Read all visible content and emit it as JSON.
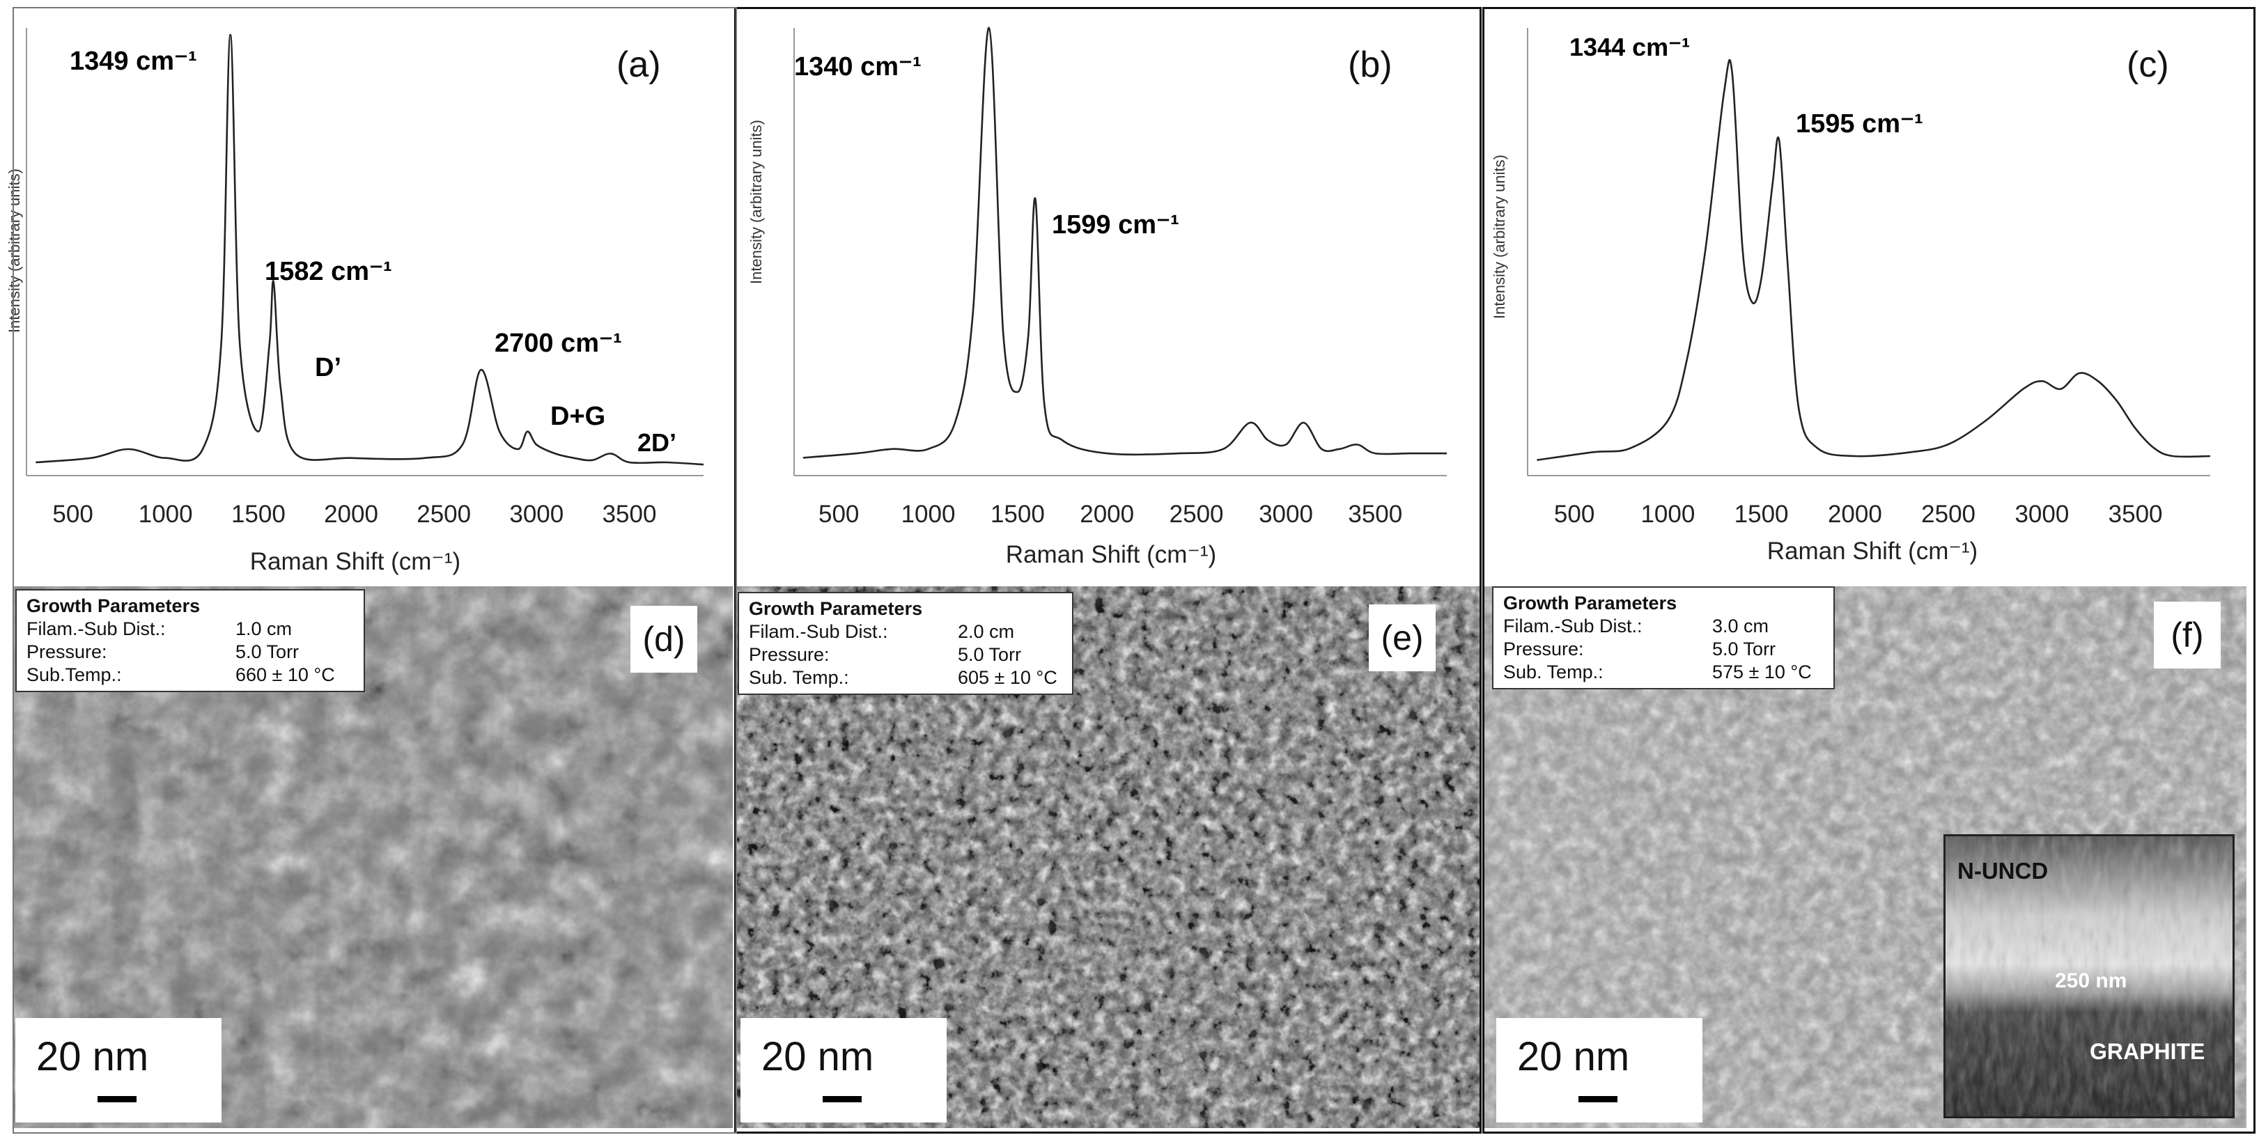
{
  "raman_panels": [
    {
      "letter": "(a)",
      "ylabel": "Intensity (arbitrary units)",
      "xlabel": "Raman Shift (cm⁻¹)",
      "ticks": [
        "500",
        "1000",
        "1500",
        "2000",
        "2500",
        "3000",
        "3500"
      ],
      "annotations": [
        {
          "text": "1349 cm⁻¹"
        },
        {
          "text": "1582 cm⁻¹"
        },
        {
          "text": "D’"
        },
        {
          "text": "2700 cm⁻¹"
        },
        {
          "text": "D+G"
        },
        {
          "text": "2D’"
        }
      ]
    },
    {
      "letter": "(b)",
      "ylabel": "Intensity (arbitrary units)",
      "xlabel": "Raman Shift (cm⁻¹)",
      "ticks": [
        "500",
        "1000",
        "1500",
        "2000",
        "2500",
        "3000",
        "3500"
      ],
      "annotations": [
        {
          "text": "1340 cm⁻¹"
        },
        {
          "text": "1599 cm⁻¹"
        }
      ]
    },
    {
      "letter": "(c)",
      "ylabel": "Intensity (arbitrary units)",
      "xlabel": "Raman Shift (cm⁻¹)",
      "ticks": [
        "500",
        "1000",
        "1500",
        "2000",
        "2500",
        "3000",
        "3500"
      ],
      "annotations": [
        {
          "text": "1344 cm⁻¹"
        },
        {
          "text": "1595 cm⁻¹"
        }
      ]
    }
  ],
  "chart_data": [
    {
      "type": "line",
      "panel": "(a)",
      "xlabel": "Raman Shift (cm⁻¹)",
      "ylabel": "Intensity (arbitrary units)",
      "xlim": [
        250,
        3900
      ],
      "ylim": [
        0,
        1
      ],
      "series": [
        {
          "x": [
            300,
            600,
            800,
            1000,
            1200,
            1300,
            1349,
            1400,
            1500,
            1560,
            1582,
            1620,
            1700,
            2000,
            2400,
            2600,
            2700,
            2800,
            2900,
            2950,
            3000,
            3100,
            3200,
            3300,
            3400,
            3500,
            3700,
            3900
          ],
          "y": [
            0.03,
            0.04,
            0.06,
            0.04,
            0.06,
            0.3,
            1.0,
            0.3,
            0.1,
            0.3,
            0.44,
            0.2,
            0.05,
            0.04,
            0.04,
            0.07,
            0.24,
            0.1,
            0.06,
            0.1,
            0.07,
            0.05,
            0.04,
            0.035,
            0.05,
            0.03,
            0.03,
            0.025
          ]
        }
      ]
    },
    {
      "type": "line",
      "panel": "(b)",
      "xlabel": "Raman Shift (cm⁻¹)",
      "ylabel": "Intensity (arbitrary units)",
      "xlim": [
        250,
        3900
      ],
      "ylim": [
        0,
        1
      ],
      "series": [
        {
          "x": [
            300,
            600,
            800,
            1000,
            1150,
            1250,
            1340,
            1420,
            1500,
            1560,
            1599,
            1650,
            1750,
            2000,
            2400,
            2650,
            2800,
            2900,
            3000,
            3100,
            3200,
            3300,
            3400,
            3500,
            3700,
            3900
          ],
          "y": [
            0.02,
            0.03,
            0.04,
            0.04,
            0.1,
            0.35,
            1.0,
            0.3,
            0.17,
            0.3,
            0.61,
            0.14,
            0.06,
            0.03,
            0.03,
            0.04,
            0.1,
            0.06,
            0.05,
            0.1,
            0.04,
            0.04,
            0.05,
            0.03,
            0.03,
            0.03
          ]
        }
      ]
    },
    {
      "type": "line",
      "panel": "(c)",
      "xlabel": "Raman Shift (cm⁻¹)",
      "ylabel": "Intensity (arbitrary units)",
      "xlim": [
        250,
        3900
      ],
      "ylim": [
        0,
        1
      ],
      "series": [
        {
          "x": [
            300,
            600,
            800,
            1000,
            1100,
            1200,
            1300,
            1344,
            1400,
            1450,
            1500,
            1560,
            1595,
            1640,
            1700,
            1800,
            2000,
            2300,
            2500,
            2700,
            2900,
            3000,
            3100,
            3200,
            3300,
            3400,
            3500,
            3600,
            3700,
            3900
          ],
          "y": [
            0.02,
            0.04,
            0.05,
            0.12,
            0.27,
            0.55,
            0.95,
            1.0,
            0.55,
            0.42,
            0.48,
            0.72,
            0.83,
            0.52,
            0.15,
            0.05,
            0.03,
            0.04,
            0.06,
            0.12,
            0.2,
            0.22,
            0.2,
            0.24,
            0.22,
            0.17,
            0.1,
            0.05,
            0.03,
            0.03
          ]
        }
      ]
    }
  ],
  "sem_panels": [
    {
      "letter": "(d)",
      "scale": "20 nm",
      "params": {
        "title": "Growth Parameters",
        "rows": [
          {
            "k": "Filam.-Sub  Dist.:",
            "v": "1.0 cm"
          },
          {
            "k": "Pressure:",
            "v": "5.0 Torr"
          },
          {
            "k": "Sub.Temp.:",
            "v": "660 ± 10 °C"
          }
        ]
      }
    },
    {
      "letter": "(e)",
      "scale": "20 nm",
      "params": {
        "title": "Growth Parameters",
        "rows": [
          {
            "k": "Filam.-Sub Dist.:",
            "v": "2.0 cm"
          },
          {
            "k": "Pressure:",
            "v": "5.0 Torr"
          },
          {
            "k": "Sub. Temp.:",
            "v": "605 ± 10 °C"
          }
        ]
      }
    },
    {
      "letter": "(f)",
      "scale": "20 nm",
      "params": {
        "title": "Growth Parameters",
        "rows": [
          {
            "k": "Filam.-Sub Dist.:",
            "v": "3.0 cm"
          },
          {
            "k": "Pressure:",
            "v": "5.0 Torr"
          },
          {
            "k": "Sub. Temp.:",
            "v": "575 ± 10 °C"
          }
        ]
      },
      "inset": {
        "top_label": "N-UNCD",
        "mid_label": "250 nm",
        "bottom_label": "GRAPHITE"
      }
    }
  ]
}
